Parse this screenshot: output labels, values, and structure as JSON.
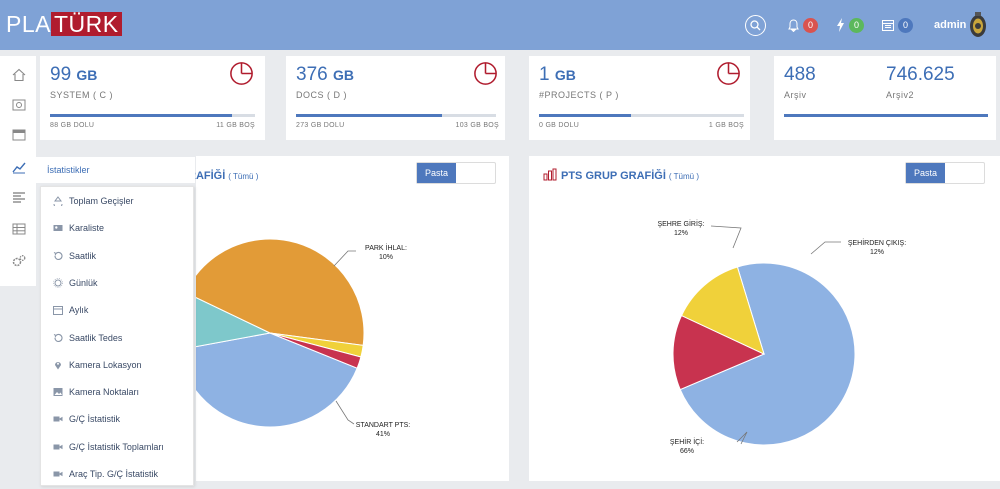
{
  "header": {
    "logo_left": "PLA",
    "logo_right": "TÜRK",
    "notifications_count": "0",
    "alerts_count": "0",
    "calendar_count": "0",
    "user_name": "admin"
  },
  "stats": [
    {
      "value": "99",
      "unit": "GB",
      "label": "SYSTEM ( C )",
      "used": "88 GB DOLU",
      "free": "11 GB BOŞ",
      "fill_percent": 89
    },
    {
      "value": "376",
      "unit": "GB",
      "label": "DOCS ( D )",
      "used": "273 GB DOLU",
      "free": "103 GB BOŞ",
      "fill_percent": 73
    },
    {
      "value": "1",
      "unit": "GB",
      "label": "#PROJECTS ( P )",
      "used": "0 GB DOLU",
      "free": "1 GB BOŞ",
      "fill_percent": 45
    }
  ],
  "archive": {
    "value1": "488",
    "label1": "Arşiv",
    "value2": "746.625",
    "label2": "Arşiv2"
  },
  "menu": {
    "header": "İstatistikler",
    "items": [
      {
        "label": "Toplam Geçişler",
        "icon": "recycle-icon"
      },
      {
        "label": "Karaliste",
        "icon": "user-card-icon"
      },
      {
        "label": "Saatlik",
        "icon": "history-icon"
      },
      {
        "label": "Günlük",
        "icon": "sun-icon"
      },
      {
        "label": "Aylık",
        "icon": "calendar-icon"
      },
      {
        "label": "Saatlik Tedes",
        "icon": "history-icon"
      },
      {
        "label": "Kamera Lokasyon",
        "icon": "map-pin-icon"
      },
      {
        "label": "Kamera Noktaları",
        "icon": "image-icon"
      },
      {
        "label": "G/Ç İstatistik",
        "icon": "video-camera-icon"
      },
      {
        "label": "G/Ç İstatistik Toplamları",
        "icon": "video-camera-icon"
      },
      {
        "label": "Araç Tip. G/Ç İstatistik",
        "icon": "video-camera-icon"
      }
    ]
  },
  "panel_left": {
    "title_visible": "RAFİĞİ",
    "scope": "( Tümü )",
    "toggle_label": "Pasta"
  },
  "panel_right": {
    "title": "PTS GRUP GRAFİĞİ",
    "scope": "( Tümü )",
    "toggle_label": "Pasta"
  },
  "chart_data": [
    {
      "type": "pie",
      "title": "",
      "slices": [
        {
          "label": "STANDART PTS",
          "percent_label": "41%",
          "value": 41,
          "color": "#8eb2e3"
        },
        {
          "label": "PARK İHLAL",
          "percent_label": "10%",
          "value": 10,
          "color": "#7ec8cb"
        },
        {
          "label": "",
          "percent_label": "",
          "value": 45,
          "color": "#e29b37"
        },
        {
          "label": "",
          "percent_label": "",
          "value": 2,
          "color": "#f0d13a"
        },
        {
          "label": "",
          "percent_label": "",
          "value": 2,
          "color": "#c8334f"
        }
      ]
    },
    {
      "type": "pie",
      "title": "PTS GRUP GRAFİĞİ",
      "slices": [
        {
          "label": "ŞEHİR İÇİ",
          "percent_label": "66%",
          "value": 66,
          "color": "#8eb2e3"
        },
        {
          "label": "ŞEHRE GİRİŞ",
          "percent_label": "12%",
          "value": 12,
          "color": "#c8334f"
        },
        {
          "label": "ŞEHİRDEN ÇIKIŞ",
          "percent_label": "12%",
          "value": 12,
          "color": "#f0d13a"
        }
      ]
    }
  ],
  "colors": {
    "header": "#7fa2d6",
    "accent": "#3d6eb5",
    "brand_red": "#b01c2e"
  }
}
